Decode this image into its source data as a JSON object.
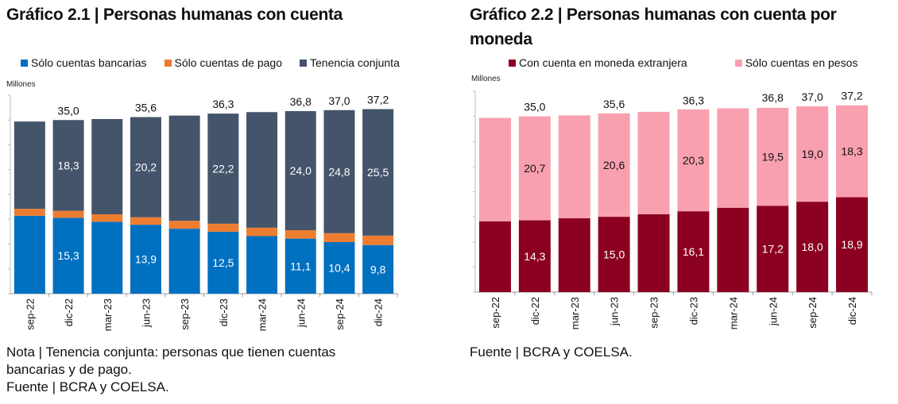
{
  "left": {
    "title": "Gráfico 2.1 | Personas humanas con cuenta",
    "note_lines": [
      "Nota | Tenencia conjunta: personas que tienen cuentas",
      "bancarias y de pago.",
      "Fuente | BCRA y COELSA."
    ]
  },
  "right": {
    "title_lines": [
      "Gráfico 2.2 | Personas humanas con cuenta por",
      "moneda"
    ],
    "note_lines": [
      "Fuente | BCRA y COELSA."
    ]
  },
  "chart_data": [
    {
      "type": "bar",
      "stacked": true,
      "ylabel": "Millones",
      "ylim": [
        0,
        40
      ],
      "grid": false,
      "legend_placement": "top",
      "categories": [
        "sep-22",
        "dic-22",
        "mar-23",
        "jun-23",
        "sep-23",
        "dic-23",
        "mar-24",
        "jun-24",
        "sep-24",
        "dic-24"
      ],
      "series": [
        {
          "name": "Sólo cuentas bancarias",
          "color": "#0070C0",
          "label_color": "#ffffff",
          "values": [
            15.7,
            15.3,
            14.5,
            13.9,
            13.1,
            12.5,
            11.6,
            11.1,
            10.4,
            9.8
          ],
          "labeled": [
            false,
            true,
            false,
            true,
            false,
            true,
            false,
            true,
            true,
            true
          ]
        },
        {
          "name": "Sólo cuentas de pago",
          "color": "#ED7D31",
          "label_color": "#ffffff",
          "values": [
            1.4,
            1.4,
            1.5,
            1.5,
            1.6,
            1.6,
            1.7,
            1.7,
            1.8,
            1.9
          ],
          "labeled": [
            false,
            false,
            false,
            false,
            false,
            false,
            false,
            false,
            false,
            false
          ]
        },
        {
          "name": "Tenencia conjunta",
          "color": "#44546A",
          "label_color": "#ffffff",
          "values": [
            17.6,
            18.3,
            19.2,
            20.2,
            21.2,
            22.2,
            23.3,
            24.0,
            24.8,
            25.5
          ],
          "labeled": [
            false,
            true,
            false,
            true,
            false,
            true,
            false,
            true,
            true,
            true
          ]
        }
      ],
      "totals": [
        34.7,
        35.0,
        35.2,
        35.6,
        35.9,
        36.3,
        36.6,
        36.8,
        37.0,
        37.2
      ],
      "totals_labeled": [
        false,
        true,
        false,
        true,
        false,
        true,
        false,
        true,
        true,
        true
      ]
    },
    {
      "type": "bar",
      "stacked": true,
      "ylabel": "Millones",
      "ylim": [
        0,
        40
      ],
      "grid": false,
      "legend_placement": "top",
      "categories": [
        "sep-22",
        "dic-22",
        "mar-23",
        "jun-23",
        "sep-23",
        "dic-23",
        "mar-24",
        "jun-24",
        "sep-24",
        "dic-24"
      ],
      "series": [
        {
          "name": "Con cuenta en moneda extranjera",
          "color": "#8B0020",
          "label_color": "#ffffff",
          "values": [
            14.1,
            14.3,
            14.7,
            15.0,
            15.5,
            16.1,
            16.8,
            17.2,
            18.0,
            18.9
          ],
          "labeled": [
            false,
            true,
            false,
            true,
            false,
            true,
            false,
            true,
            true,
            true
          ]
        },
        {
          "name": "Sólo cuentas en pesos",
          "color": "#F9A0B0",
          "label_color": "#111111",
          "values": [
            20.6,
            20.7,
            20.5,
            20.6,
            20.4,
            20.3,
            19.8,
            19.5,
            19.0,
            18.3
          ],
          "labeled": [
            false,
            true,
            false,
            true,
            false,
            true,
            false,
            true,
            true,
            true
          ]
        }
      ],
      "totals": [
        34.7,
        35.0,
        35.2,
        35.6,
        35.9,
        36.3,
        36.6,
        36.8,
        37.0,
        37.2
      ],
      "totals_labeled": [
        false,
        true,
        false,
        true,
        false,
        true,
        false,
        true,
        true,
        true
      ]
    }
  ]
}
